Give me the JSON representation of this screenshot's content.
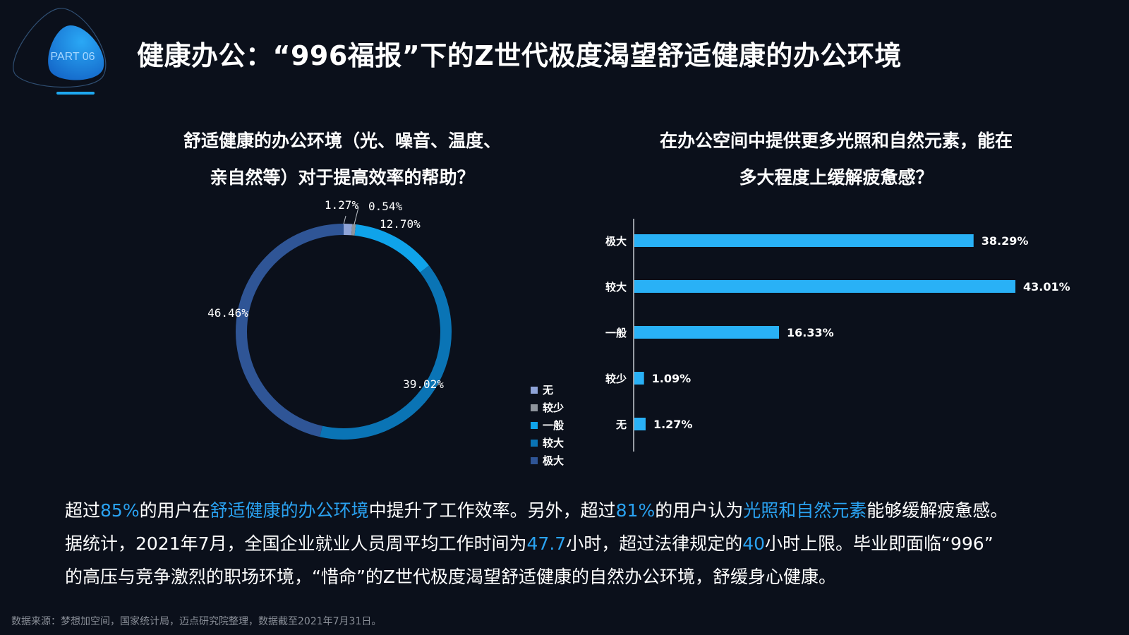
{
  "header": {
    "badge": "PART 06",
    "title": "健康办公：“996福报”下的Z世代极度渴望舒适健康的办公环境"
  },
  "colors": {
    "background": "#0b101b",
    "accent": "#2aa2f1",
    "bar": "#29b1f6"
  },
  "chart_data": [
    {
      "type": "pie",
      "donut": true,
      "title_line1": "舒适健康的办公环境（光、噪音、温度、",
      "title_line2": "亲自然等）对于提高效率的帮助？",
      "categories": [
        "无",
        "较少",
        "一般",
        "较大",
        "极大"
      ],
      "values": [
        1.27,
        0.54,
        12.7,
        39.02,
        46.46
      ],
      "labels": [
        "1.27%",
        "0.54%",
        "12.70%",
        "39.02%",
        "46.46%"
      ],
      "colors": [
        "#8fa4d8",
        "#8e949c",
        "#0fa3ea",
        "#0a74b5",
        "#2f5596"
      ],
      "legend": "right"
    },
    {
      "type": "bar",
      "orientation": "horizontal",
      "title_line1": "在办公空间中提供更多光照和自然元素，能在",
      "title_line2": "多大程度上缓解疲惫感？",
      "categories": [
        "极大",
        "较大",
        "一般",
        "较少",
        "无"
      ],
      "values": [
        38.29,
        43.01,
        16.33,
        1.09,
        1.27
      ],
      "labels": [
        "38.29%",
        "43.01%",
        "16.33%",
        "1.09%",
        "1.27%"
      ],
      "grid": false
    }
  ],
  "summary": {
    "s1": "超过",
    "s2": "85%",
    "s3": "的用户在",
    "s4": "舒适健康的办公环境",
    "s5": "中提升了工作效率。另外，超过",
    "s6": "81%",
    "s7": "的用户认为",
    "s8": "光照和自然元素",
    "s9": "能够缓解疲惫感。",
    "s10": "据统计，2021年7月，全国企业就业人员周平均工作时间为",
    "s11": "47.7",
    "s12": "小时，超过法律规定的",
    "s13": "40",
    "s14": "小时上限。毕业即面临“996”",
    "s15": "的高压与竞争激烈的职场环境，“惜命”的Z世代极度渴望舒适健康的自然办公环境，舒缓身心健康。"
  },
  "source": "数据来源：梦想加空间，国家统计局，迈点研究院整理，数据截至2021年7月31日。"
}
